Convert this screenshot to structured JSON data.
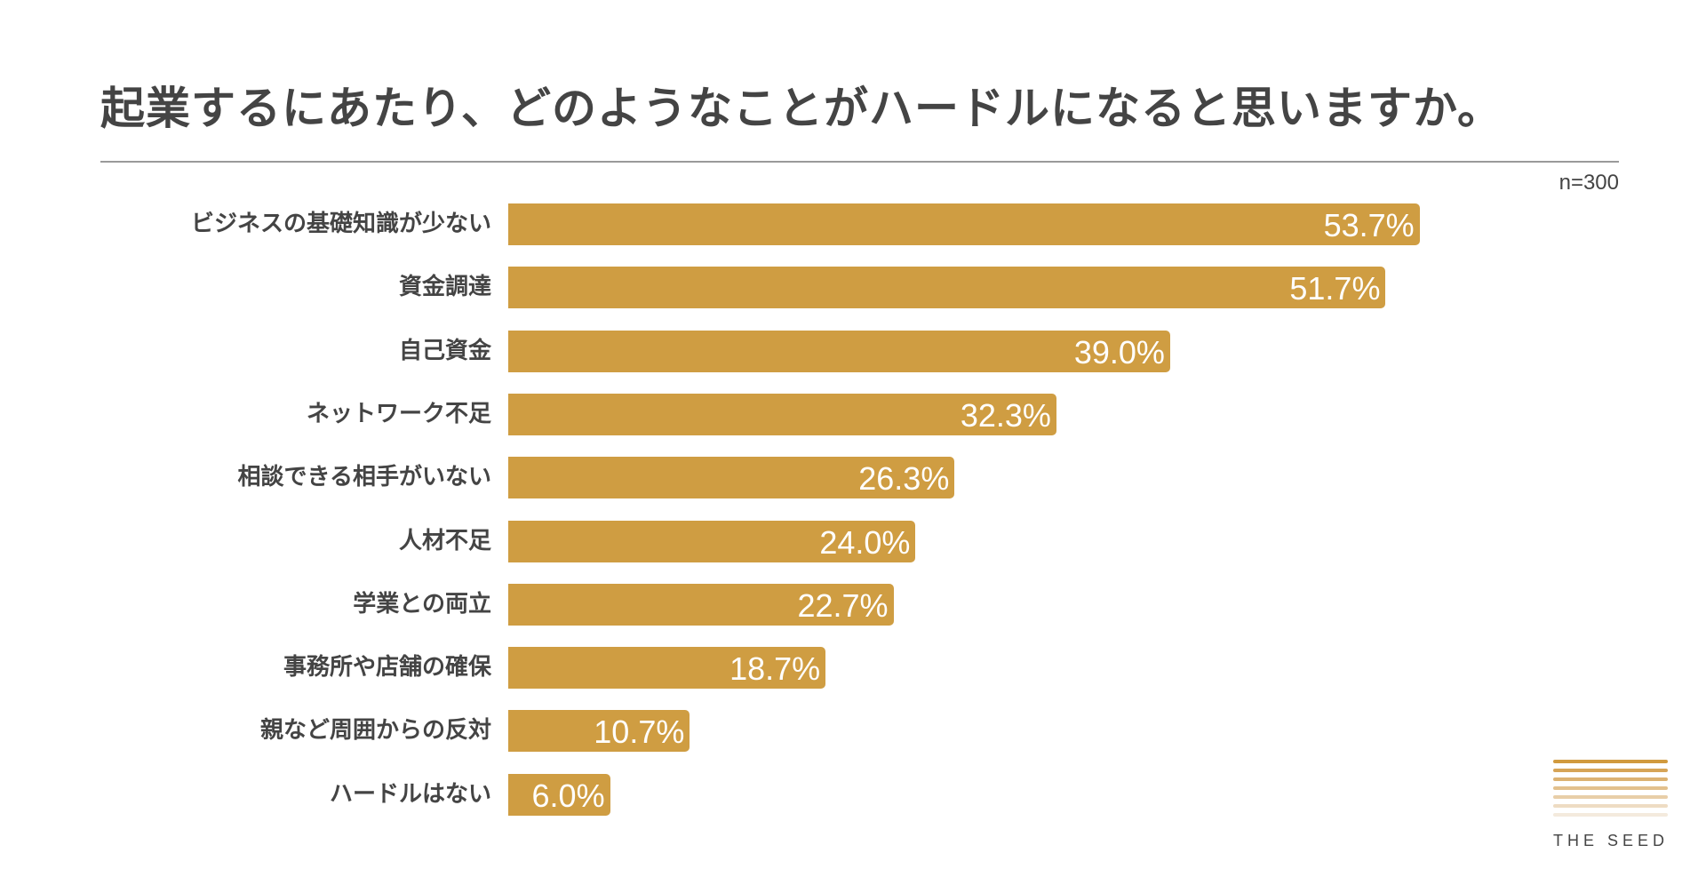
{
  "chart_data": {
    "type": "bar",
    "orientation": "horizontal",
    "title": "起業するにあたり、どのようなことがハードルになると思いますか。",
    "note": "n=300",
    "categories": [
      "ビジネスの基礎知識が少ない",
      "資金調達",
      "自己資金",
      "ネットワーク不足",
      "相談できる相手がいない",
      "人材不足",
      "学業との両立",
      "事務所や店舗の確保",
      "親など周囲からの反対",
      "ハードルはない"
    ],
    "values": [
      53.7,
      51.7,
      39.0,
      32.3,
      26.3,
      24.0,
      22.7,
      18.7,
      10.7,
      6.0
    ],
    "value_labels": [
      "53.7%",
      "51.7%",
      "39.0%",
      "32.3%",
      "26.3%",
      "24.0%",
      "22.7%",
      "18.7%",
      "10.7%",
      "6.0%"
    ],
    "unit": "%",
    "xlim": [
      0,
      100
    ],
    "grid": false,
    "bar_color": "#cf9d42"
  },
  "logo": {
    "text": "THE SEED",
    "colors": [
      "#d19a3e",
      "#d6a457",
      "#dcb272",
      "#e2c08d",
      "#e8cea8",
      "#eedcc3",
      "#f4eadd"
    ]
  }
}
